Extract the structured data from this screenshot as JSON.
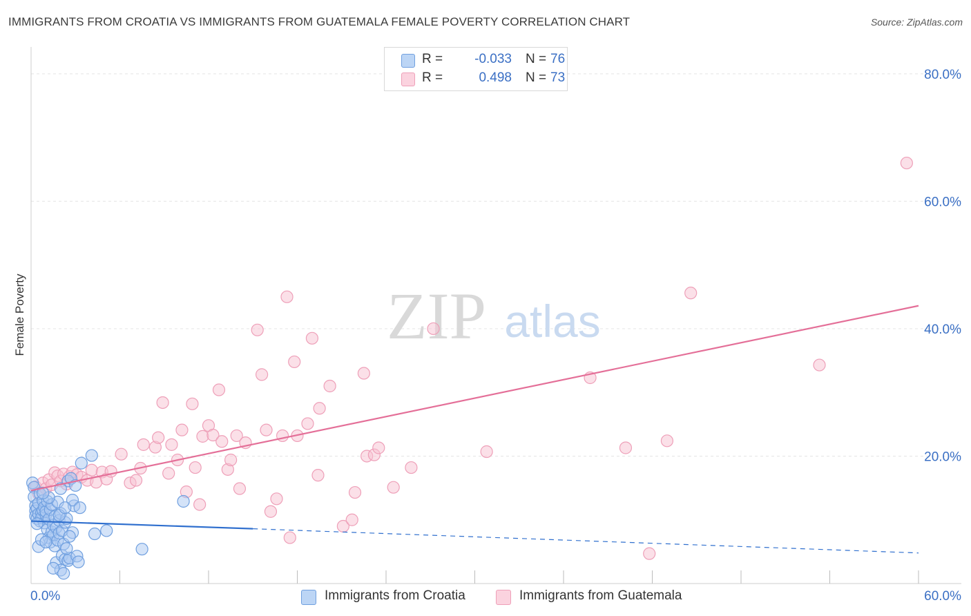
{
  "title": "IMMIGRANTS FROM CROATIA VS IMMIGRANTS FROM GUATEMALA FEMALE POVERTY CORRELATION CHART",
  "source": "Source: ZipAtlas.com",
  "watermark": {
    "zip": "ZIP",
    "atlas": "atlas"
  },
  "legend": {
    "r_label": "R =",
    "n_label": "N =",
    "series": [
      {
        "r": "-0.033",
        "n": "76"
      },
      {
        "r": "0.498",
        "n": "73"
      }
    ]
  },
  "colors": {
    "croatia_fill": "#a9c8f2",
    "croatia_stroke": "#6f9fdf",
    "croatia_line": "#2f6fce",
    "guatemala_fill": "#f7c2d2",
    "guatemala_stroke": "#ee9fb8",
    "guatemala_line": "#e46f98",
    "axis_text": "#3a6fc4"
  },
  "chart_data": {
    "type": "scatter",
    "title": "IMMIGRANTS FROM CROATIA VS IMMIGRANTS FROM GUATEMALA FEMALE POVERTY CORRELATION CHART",
    "xlabel": "",
    "ylabel": "Female Poverty",
    "xlim": [
      0,
      60
    ],
    "ylim": [
      0,
      84
    ],
    "x_tick_labels": [
      {
        "value": 0,
        "label": "0.0%"
      },
      {
        "value": 60,
        "label": "60.0%"
      }
    ],
    "x_minor_ticks": [
      6,
      12,
      18,
      24,
      30,
      36,
      42,
      48,
      54,
      60
    ],
    "y_ticks": [
      {
        "value": 20,
        "label": "20.0%"
      },
      {
        "value": 40,
        "label": "40.0%"
      },
      {
        "value": 60,
        "label": "60.0%"
      },
      {
        "value": 80,
        "label": "80.0%"
      }
    ],
    "grid": true,
    "series": [
      {
        "name": "Immigrants from Croatia",
        "r": -0.033,
        "n": 76,
        "trend": {
          "solid": [
            [
              0,
              9.8
            ],
            [
              15,
              8.6
            ]
          ],
          "dashed": [
            [
              15,
              8.6
            ],
            [
              60,
              4.8
            ]
          ]
        },
        "points": [
          [
            0.1,
            15.8
          ],
          [
            0.2,
            15.1
          ],
          [
            0.2,
            13.6
          ],
          [
            0.3,
            12.2
          ],
          [
            0.3,
            11.4
          ],
          [
            0.3,
            10.6
          ],
          [
            0.4,
            10.2
          ],
          [
            0.4,
            11.8
          ],
          [
            0.5,
            12.6
          ],
          [
            0.5,
            10.9
          ],
          [
            0.6,
            14.1
          ],
          [
            0.6,
            9.8
          ],
          [
            0.7,
            11.1
          ],
          [
            0.7,
            10.3
          ],
          [
            0.8,
            11.5
          ],
          [
            0.8,
            13.0
          ],
          [
            0.9,
            9.5
          ],
          [
            0.9,
            12.0
          ],
          [
            1.0,
            10.8
          ],
          [
            1.0,
            11.3
          ],
          [
            1.1,
            8.5
          ],
          [
            1.1,
            12.9
          ],
          [
            1.2,
            10.1
          ],
          [
            1.2,
            7.2
          ],
          [
            1.3,
            11.6
          ],
          [
            1.3,
            6.5
          ],
          [
            1.4,
            8.1
          ],
          [
            1.4,
            12.4
          ],
          [
            1.5,
            9.2
          ],
          [
            1.5,
            7.6
          ],
          [
            1.6,
            5.9
          ],
          [
            1.6,
            10.5
          ],
          [
            1.7,
            8.8
          ],
          [
            1.7,
            3.3
          ],
          [
            1.8,
            6.8
          ],
          [
            1.8,
            12.8
          ],
          [
            1.9,
            9.9
          ],
          [
            1.9,
            7.9
          ],
          [
            2.0,
            2.1
          ],
          [
            2.0,
            11.0
          ],
          [
            2.1,
            4.4
          ],
          [
            2.1,
            8.3
          ],
          [
            2.2,
            1.6
          ],
          [
            2.2,
            6.2
          ],
          [
            2.3,
            3.8
          ],
          [
            2.3,
            9.6
          ],
          [
            2.4,
            10.2
          ],
          [
            2.5,
            16.1
          ],
          [
            2.5,
            3.6
          ],
          [
            2.6,
            4.0
          ],
          [
            2.7,
            16.5
          ],
          [
            2.8,
            8.0
          ],
          [
            2.9,
            12.2
          ],
          [
            3.0,
            15.4
          ],
          [
            3.1,
            4.3
          ],
          [
            3.2,
            3.4
          ],
          [
            2.4,
            5.5
          ],
          [
            2.8,
            13.1
          ],
          [
            1.5,
            2.4
          ],
          [
            0.5,
            5.8
          ],
          [
            0.7,
            6.9
          ],
          [
            1.0,
            6.5
          ],
          [
            3.4,
            18.9
          ],
          [
            4.1,
            20.1
          ],
          [
            5.1,
            8.3
          ],
          [
            7.5,
            5.4
          ],
          [
            10.3,
            12.9
          ],
          [
            2.6,
            7.4
          ],
          [
            1.2,
            13.5
          ],
          [
            0.8,
            14.2
          ],
          [
            2.0,
            14.9
          ],
          [
            0.4,
            9.4
          ],
          [
            1.9,
            10.7
          ],
          [
            2.3,
            11.9
          ],
          [
            3.3,
            11.9
          ],
          [
            4.3,
            7.8
          ]
        ]
      },
      {
        "name": "Immigrants from Guatemala",
        "r": 0.498,
        "n": 73,
        "trend": {
          "solid": [
            [
              0,
              14.6
            ],
            [
              60,
              43.6
            ]
          ]
        },
        "points": [
          [
            0.3,
            15.2
          ],
          [
            0.5,
            14.1
          ],
          [
            0.8,
            15.8
          ],
          [
            1.0,
            14.9
          ],
          [
            1.2,
            16.3
          ],
          [
            1.4,
            15.5
          ],
          [
            1.6,
            17.4
          ],
          [
            1.8,
            16.9
          ],
          [
            2.0,
            16.1
          ],
          [
            2.2,
            17.2
          ],
          [
            2.4,
            15.6
          ],
          [
            2.6,
            16.8
          ],
          [
            2.8,
            17.5
          ],
          [
            3.1,
            17.1
          ],
          [
            3.4,
            16.7
          ],
          [
            3.8,
            16.2
          ],
          [
            4.1,
            17.8
          ],
          [
            4.4,
            15.9
          ],
          [
            4.8,
            17.5
          ],
          [
            5.1,
            16.4
          ],
          [
            5.4,
            17.6
          ],
          [
            6.1,
            20.3
          ],
          [
            6.7,
            15.8
          ],
          [
            7.1,
            16.2
          ],
          [
            7.4,
            18.1
          ],
          [
            7.6,
            21.8
          ],
          [
            8.4,
            21.4
          ],
          [
            8.6,
            22.9
          ],
          [
            8.9,
            28.4
          ],
          [
            9.3,
            17.3
          ],
          [
            9.5,
            21.8
          ],
          [
            9.9,
            19.4
          ],
          [
            10.2,
            24.1
          ],
          [
            10.5,
            14.4
          ],
          [
            10.9,
            28.2
          ],
          [
            11.1,
            18.2
          ],
          [
            11.4,
            12.4
          ],
          [
            11.6,
            23.1
          ],
          [
            12.0,
            24.8
          ],
          [
            12.3,
            23.3
          ],
          [
            12.7,
            30.4
          ],
          [
            12.9,
            22.3
          ],
          [
            13.3,
            17.9
          ],
          [
            13.5,
            19.4
          ],
          [
            13.9,
            23.2
          ],
          [
            14.1,
            14.9
          ],
          [
            14.5,
            22.1
          ],
          [
            15.3,
            39.8
          ],
          [
            15.6,
            32.8
          ],
          [
            15.9,
            24.1
          ],
          [
            16.2,
            11.3
          ],
          [
            16.6,
            13.3
          ],
          [
            17.0,
            23.2
          ],
          [
            17.3,
            45.0
          ],
          [
            17.5,
            7.2
          ],
          [
            17.8,
            34.8
          ],
          [
            18.0,
            23.2
          ],
          [
            18.7,
            25.1
          ],
          [
            19.0,
            38.5
          ],
          [
            19.4,
            17.0
          ],
          [
            19.5,
            27.5
          ],
          [
            20.2,
            31.0
          ],
          [
            21.1,
            9.0
          ],
          [
            21.7,
            10.0
          ],
          [
            21.9,
            14.3
          ],
          [
            22.5,
            33.0
          ],
          [
            22.7,
            20.0
          ],
          [
            23.2,
            20.2
          ],
          [
            23.5,
            21.3
          ],
          [
            24.5,
            15.1
          ],
          [
            25.7,
            18.2
          ],
          [
            27.2,
            40.0
          ],
          [
            30.8,
            20.7
          ]
        ],
        "extra_points": [
          [
            37.8,
            32.3
          ],
          [
            40.2,
            21.3
          ],
          [
            41.8,
            4.7
          ],
          [
            43.0,
            22.4
          ],
          [
            44.6,
            45.6
          ],
          [
            53.3,
            34.3
          ],
          [
            59.2,
            66.0
          ]
        ]
      }
    ]
  },
  "bottom_legend": [
    {
      "label": "Immigrants from Croatia"
    },
    {
      "label": "Immigrants from Guatemala"
    }
  ]
}
